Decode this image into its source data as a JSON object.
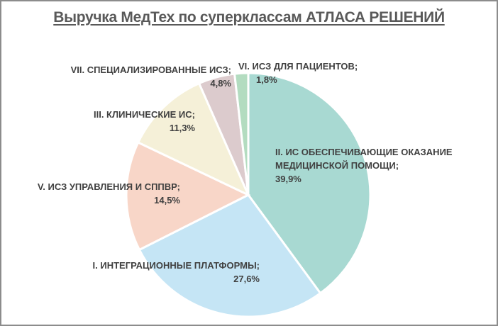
{
  "chart_data": {
    "type": "pie",
    "title": "Выручка МедТех по суперклассам АТЛАСА РЕШЕНИЙ",
    "start_angle_deg": 0,
    "direction": "clockwise",
    "legend": "none (data labels with category name and percent)",
    "categories": [
      "II. ИС ОБЕСПЕЧИВАЮЩИЕ ОКАЗАНИЕ МЕДИЦИНСКОЙ ПОМОЩИ",
      "I. ИНТЕГРАЦИОННЫЕ ПЛАТФОРМЫ",
      "V. ИСЗ УПРАВЛЕНИЯ И СППВР",
      "III. КЛИНИЧЕСКИЕ ИС",
      "VII. СПЕЦИАЛИЗИРОВАННЫЕ ИСЗ",
      "VI. ИСЗ ДЛЯ ПАЦИЕНТОВ"
    ],
    "values": [
      39.9,
      27.6,
      14.5,
      11.3,
      4.8,
      1.8
    ],
    "unit": "%",
    "colors": [
      "#a8d9d2",
      "#c5e5f5",
      "#f8d6c8",
      "#f5f0d8",
      "#dccbcd",
      "#b3dcc0"
    ]
  },
  "labels": {
    "s0_name_line1": "II. ИС ОБЕСПЕЧИВАЮЩИЕ ОКАЗАНИЕ",
    "s0_name_line2": "МЕДИЦИНСКОЙ ПОМОЩИ;",
    "s0_value": "39,9%",
    "s1_name": "I. ИНТЕГРАЦИОННЫЕ ПЛАТФОРМЫ;",
    "s1_value": "27,6%",
    "s2_name": "V. ИСЗ УПРАВЛЕНИЯ И СППВР;",
    "s2_value": "14,5%",
    "s3_name": "III. КЛИНИЧЕСКИЕ ИС;",
    "s3_value": "11,3%",
    "s4_name": "VII. СПЕЦИАЛИЗИРОВАННЫЕ ИСЗ;",
    "s4_value": "4,8%",
    "s5_name": "VI. ИСЗ ДЛЯ ПАЦИЕНТОВ;",
    "s5_value": "1,8%"
  }
}
